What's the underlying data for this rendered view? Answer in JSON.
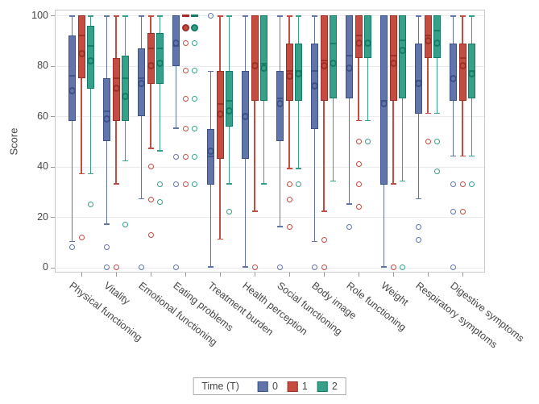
{
  "chart": {
    "y_axis_title": "Score",
    "legend_title": "Time (T)"
  },
  "chart_data": {
    "type": "boxplot",
    "title": "",
    "xlabel": "",
    "ylabel": "Score",
    "ylim": [
      0,
      100
    ],
    "yticks": [
      0,
      20,
      40,
      60,
      80,
      100
    ],
    "grid": true,
    "legend": {
      "title": "Time (T)",
      "position": "bottom",
      "entries": [
        {
          "label": "0",
          "fill": "#6175AB",
          "dark": "#3D5189"
        },
        {
          "label": "1",
          "fill": "#C44C41",
          "dark": "#9C2F26"
        },
        {
          "label": "2",
          "fill": "#36A088",
          "dark": "#127C66"
        }
      ]
    },
    "categories": [
      "Physical functioning",
      "Vitality",
      "Emotional functioning",
      "Eating problems",
      "Treatment burden",
      "Health perception",
      "Social functioning",
      "Body image",
      "Role functioning",
      "Weight",
      "Respiratory symptoms",
      "Digestive symptoms"
    ],
    "series": [
      {
        "name": "0",
        "fill": "#6175AB",
        "dark": "#3D5189",
        "boxes": [
          {
            "low": 10,
            "q1": 58,
            "median": 76,
            "mean": 70,
            "q3": 92,
            "high": 100,
            "outliers": [
              8
            ]
          },
          {
            "low": 17,
            "q1": 50,
            "median": 62,
            "mean": 59,
            "q3": 75,
            "high": 100,
            "outliers": [
              8,
              0
            ]
          },
          {
            "low": 27,
            "q1": 60,
            "median": 75,
            "mean": 73,
            "q3": 87,
            "high": 100,
            "outliers": [
              0
            ]
          },
          {
            "low": 55,
            "q1": 80,
            "median": 88,
            "mean": 89,
            "q3": 100,
            "high": 100,
            "outliers": [
              44,
              33,
              0
            ]
          },
          {
            "low": 0,
            "q1": 33,
            "median": 44,
            "mean": 46,
            "q3": 55,
            "high": 78,
            "outliers": [
              100
            ]
          },
          {
            "low": 0,
            "q1": 43,
            "median": 60,
            "mean": 60,
            "q3": 78,
            "high": 100,
            "outliers": []
          },
          {
            "low": 16,
            "q1": 50,
            "median": 67,
            "mean": 65,
            "q3": 78,
            "high": 100,
            "outliers": [
              0
            ]
          },
          {
            "low": 10,
            "q1": 55,
            "median": 78,
            "mean": 72,
            "q3": 89,
            "high": 100,
            "outliers": [
              0
            ]
          },
          {
            "low": 25,
            "q1": 67,
            "median": 84,
            "mean": 79,
            "q3": 100,
            "high": 100,
            "outliers": [
              16
            ]
          },
          {
            "low": 0,
            "q1": 33,
            "median": 66,
            "mean": 65,
            "q3": 100,
            "high": 100,
            "outliers": []
          },
          {
            "low": 27,
            "q1": 61,
            "median": 74,
            "mean": 73,
            "q3": 89,
            "high": 100,
            "outliers": [
              16,
              11
            ]
          },
          {
            "low": 44,
            "q1": 66,
            "median": 75,
            "mean": 75,
            "q3": 89,
            "high": 100,
            "outliers": [
              33,
              22,
              0
            ]
          }
        ]
      },
      {
        "name": "1",
        "fill": "#C44C41",
        "dark": "#9C2F26",
        "boxes": [
          {
            "low": 37,
            "q1": 75,
            "median": 92,
            "mean": 85,
            "q3": 100,
            "high": 100,
            "outliers": [
              12
            ]
          },
          {
            "low": 33,
            "q1": 58,
            "median": 75,
            "mean": 71,
            "q3": 83,
            "high": 100,
            "outliers": [
              0
            ]
          },
          {
            "low": 47,
            "q1": 73,
            "median": 87,
            "mean": 80,
            "q3": 93,
            "high": 100,
            "outliers": [
              40,
              27,
              13
            ]
          },
          {
            "collapsed": true,
            "low": 100,
            "q1": 100,
            "median": 100,
            "mean": 95,
            "q3": 100,
            "high": 100,
            "outliers": [
              89,
              78,
              67,
              55,
              44,
              33
            ]
          },
          {
            "low": 11,
            "q1": 43,
            "median": 65,
            "mean": 61,
            "q3": 78,
            "high": 100,
            "outliers": []
          },
          {
            "low": 22,
            "q1": 66,
            "median": 80,
            "mean": 80,
            "q3": 100,
            "high": 100,
            "outliers": [
              0
            ]
          },
          {
            "low": 39,
            "q1": 66,
            "median": 78,
            "mean": 76,
            "q3": 89,
            "high": 100,
            "outliers": [
              33,
              27,
              16
            ]
          },
          {
            "low": 22,
            "q1": 66,
            "median": 82,
            "mean": 80,
            "q3": 100,
            "high": 100,
            "outliers": [
              11,
              0
            ]
          },
          {
            "low": 58,
            "q1": 83,
            "median": 92,
            "mean": 89,
            "q3": 100,
            "high": 100,
            "outliers": [
              50,
              41,
              33,
              24
            ]
          },
          {
            "low": 33,
            "q1": 66,
            "median": 84,
            "mean": 81,
            "q3": 100,
            "high": 100,
            "outliers": [
              0
            ]
          },
          {
            "low": 61,
            "q1": 83,
            "median": 92,
            "mean": 90,
            "q3": 100,
            "high": 100,
            "outliers": [
              50
            ]
          },
          {
            "low": 44,
            "q1": 66,
            "median": 83,
            "mean": 80,
            "q3": 89,
            "high": 100,
            "outliers": [
              33,
              22
            ]
          }
        ]
      },
      {
        "name": "2",
        "fill": "#36A088",
        "dark": "#127C66",
        "boxes": [
          {
            "low": 37,
            "q1": 71,
            "median": 88,
            "mean": 82,
            "q3": 96,
            "high": 100,
            "outliers": [
              25
            ]
          },
          {
            "low": 42,
            "q1": 58,
            "median": 75,
            "mean": 68,
            "q3": 84,
            "high": 100,
            "outliers": [
              17
            ]
          },
          {
            "low": 46,
            "q1": 73,
            "median": 87,
            "mean": 81,
            "q3": 93,
            "high": 100,
            "outliers": [
              33,
              26
            ]
          },
          {
            "collapsed": true,
            "low": 100,
            "q1": 100,
            "median": 100,
            "mean": 95,
            "q3": 100,
            "high": 100,
            "outliers": [
              89,
              78,
              67,
              55,
              44,
              33
            ]
          },
          {
            "low": 33,
            "q1": 56,
            "median": 66,
            "mean": 62,
            "q3": 78,
            "high": 100,
            "outliers": [
              22
            ]
          },
          {
            "low": 33,
            "q1": 66,
            "median": 81,
            "mean": 79,
            "q3": 100,
            "high": 100,
            "outliers": []
          },
          {
            "low": 39,
            "q1": 66,
            "median": 78,
            "mean": 77,
            "q3": 89,
            "high": 100,
            "outliers": [
              33
            ]
          },
          {
            "low": 34,
            "q1": 67,
            "median": 89,
            "mean": 81,
            "q3": 100,
            "high": 100,
            "outliers": []
          },
          {
            "low": 58,
            "q1": 83,
            "median": 89,
            "mean": 89,
            "q3": 100,
            "high": 100,
            "outliers": [
              50
            ]
          },
          {
            "low": 34,
            "q1": 67,
            "median": 90,
            "mean": 86,
            "q3": 100,
            "high": 100,
            "outliers": [
              0
            ]
          },
          {
            "low": 61,
            "q1": 83,
            "median": 94,
            "mean": 89,
            "q3": 100,
            "high": 100,
            "outliers": [
              50,
              38
            ]
          },
          {
            "low": 44,
            "q1": 67,
            "median": 78,
            "mean": 77,
            "q3": 89,
            "high": 100,
            "outliers": [
              33
            ]
          }
        ]
      }
    ]
  }
}
